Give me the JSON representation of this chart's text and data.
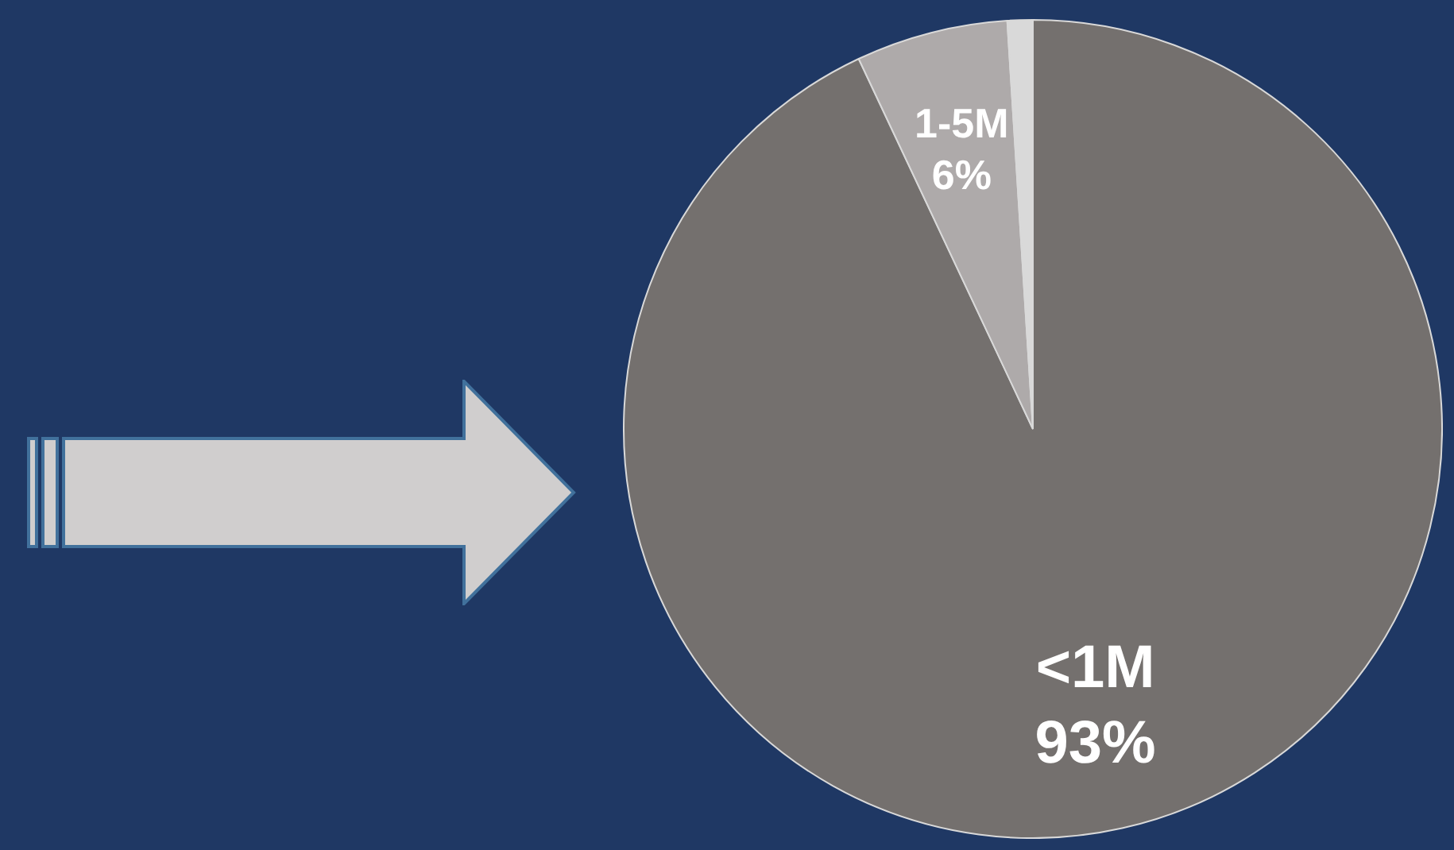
{
  "chart_data": {
    "type": "pie",
    "categories": [
      "<1M",
      "1-5M",
      null
    ],
    "values": [
      93,
      6,
      1
    ],
    "value_labels": [
      "93%",
      "6%",
      null
    ],
    "colors": [
      "#74706e",
      "#aeaaaa",
      "#d9d9d9"
    ],
    "legend": false
  }
}
